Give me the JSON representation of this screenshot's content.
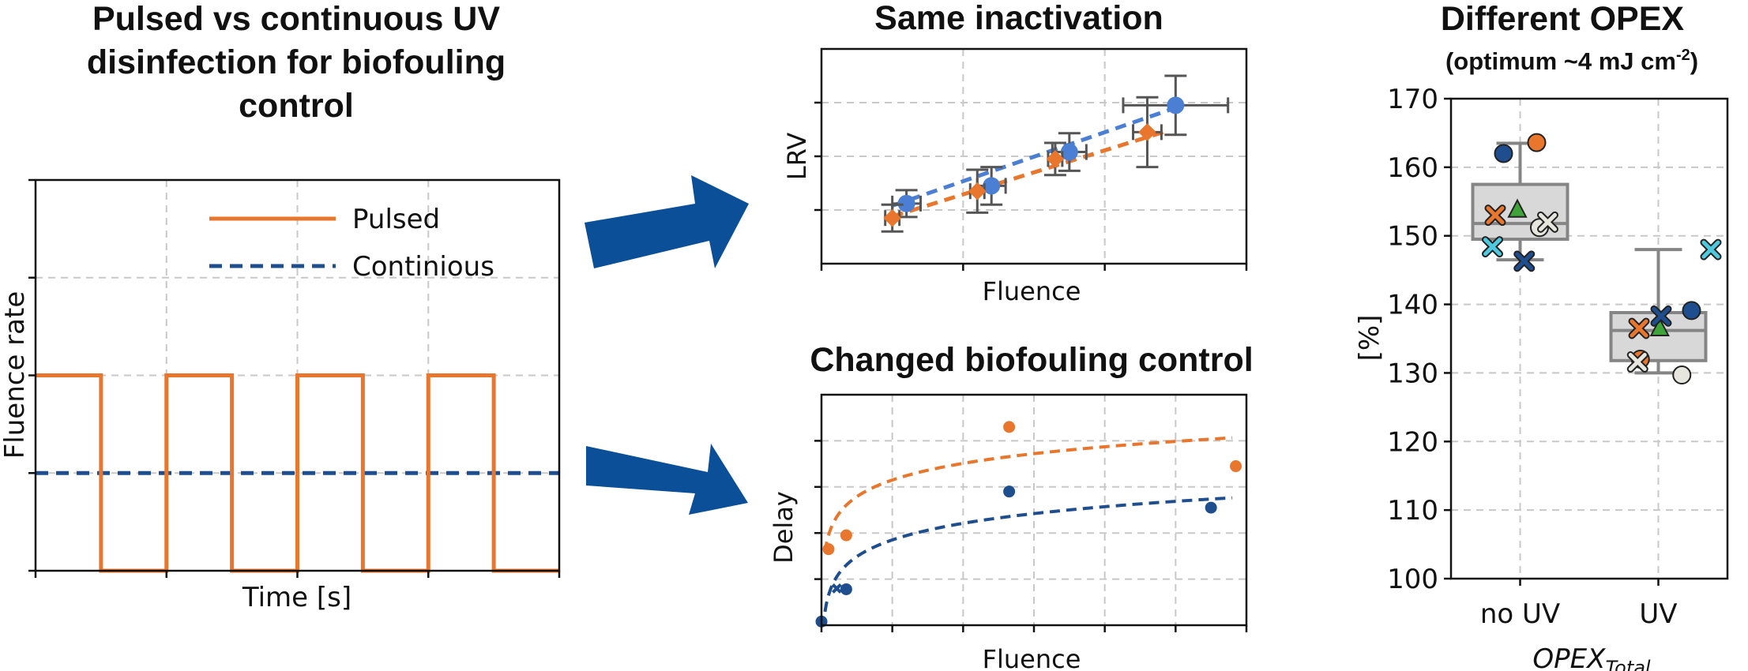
{
  "colors": {
    "orange": "#e8762c",
    "blue": "#4a7fd4",
    "dark_blue": "#1f4e8f",
    "arrow": "#0b4f99",
    "cyan": "#4fc9de",
    "green": "#3ea43a",
    "light": "#e6e6df",
    "box_fill": "#d8d8d8",
    "box_edge": "#858585"
  },
  "chart_data": [
    {
      "id": "fluence-schedule",
      "type": "line",
      "title": "Pulsed vs continuous UV disinfection for biofouling control",
      "title_lines": [
        "Pulsed vs continuous UV",
        "disinfection for biofouling",
        "control"
      ],
      "xlabel": "Time [s]",
      "ylabel": "Fluence rate",
      "xlim": [
        0,
        8
      ],
      "ylim": [
        0,
        4
      ],
      "grid": true,
      "legend_position": "upper-center",
      "series": [
        {
          "name": "Pulsed",
          "style": "solid",
          "x": [
            0,
            1,
            1,
            2,
            2,
            3,
            3,
            4,
            4,
            5,
            5,
            6,
            6,
            7,
            7,
            8
          ],
          "y": [
            2,
            2,
            0,
            0,
            2,
            2,
            0,
            0,
            2,
            2,
            0,
            0,
            2,
            2,
            0,
            0
          ]
        },
        {
          "name": "Continious",
          "style": "dashed",
          "x": [
            0,
            8
          ],
          "y": [
            1,
            1
          ]
        }
      ]
    },
    {
      "id": "inactivation",
      "type": "scatter",
      "title": "Same inactivation",
      "xlabel": "Fluence",
      "ylabel": "LRV",
      "xlim": [
        0,
        3
      ],
      "ylim": [
        0,
        4
      ],
      "grid": true,
      "series": [
        {
          "marker": "circle",
          "color_key": "blue",
          "x": [
            0.6,
            1.2,
            1.75,
            2.5
          ],
          "y": [
            1.12,
            1.45,
            2.08,
            2.95
          ],
          "xerr": [
            0.1,
            0.1,
            0.12,
            0.37
          ],
          "yerr": [
            0.25,
            0.35,
            0.35,
            0.55
          ],
          "fit": [
            [
              0.5,
              1.08
            ],
            [
              2.55,
              2.95
            ]
          ]
        },
        {
          "marker": "diamond",
          "color_key": "orange",
          "x": [
            0.5,
            1.1,
            1.65,
            2.3
          ],
          "y": [
            0.85,
            1.35,
            1.95,
            2.45
          ],
          "xerr": [
            0.05,
            0.05,
            0.05,
            0.1
          ],
          "yerr": [
            0.25,
            0.4,
            0.3,
            0.65
          ],
          "fit": [
            [
              0.5,
              0.88
            ],
            [
              2.45,
              2.48
            ]
          ]
        }
      ]
    },
    {
      "id": "biofouling",
      "type": "scatter",
      "title": "Changed biofouling control",
      "xlabel": "Fluence",
      "ylabel": "Delay",
      "xlim": [
        0,
        6
      ],
      "ylim": [
        0,
        5
      ],
      "grid": true,
      "series": [
        {
          "color_key": "orange",
          "x": [
            0.1,
            0.35,
            2.65,
            5.85
          ],
          "y": [
            1.65,
            1.95,
            4.3,
            3.45
          ],
          "fit": "logarithmic"
        },
        {
          "color_key": "dark_blue",
          "x": [
            0.0,
            0.35,
            2.65,
            5.5
          ],
          "y": [
            0.08,
            0.78,
            2.9,
            2.55
          ],
          "fit": "logarithmic"
        }
      ]
    },
    {
      "id": "opex",
      "type": "box",
      "title": "Different OPEX",
      "subtitle": "(optimum ~4 mJ cm",
      "subtitle_sup": "-2",
      "subtitle_end": ")",
      "ylabel": "[%]",
      "xlabel": "OPEX",
      "xlabel_sub": "Total",
      "categories": [
        "no UV",
        "UV"
      ],
      "yticks": [
        100,
        110,
        120,
        130,
        140,
        150,
        160,
        170
      ],
      "ylim": [
        100,
        170
      ],
      "grid": true,
      "boxes": [
        {
          "category": "no UV",
          "q1": 149.5,
          "median": 151.8,
          "q3": 157.5,
          "whisker_low": 146.5,
          "whisker_high": 163.5
        },
        {
          "category": "UV",
          "q1": 131.8,
          "median": 136.2,
          "q3": 138.8,
          "whisker_low": 130.0,
          "whisker_high": 148.0
        }
      ],
      "points": [
        {
          "category": "no UV",
          "offset": -0.12,
          "value": 162.0,
          "marker": "circle",
          "color_key": "dark_blue"
        },
        {
          "category": "no UV",
          "offset": 0.12,
          "value": 163.6,
          "marker": "circle",
          "color_key": "orange"
        },
        {
          "category": "no UV",
          "offset": -0.18,
          "value": 153.0,
          "marker": "x",
          "color_key": "orange"
        },
        {
          "category": "no UV",
          "offset": -0.02,
          "value": 153.8,
          "marker": "triangle",
          "color_key": "green"
        },
        {
          "category": "no UV",
          "offset": 0.14,
          "value": 151.2,
          "marker": "circle",
          "color_key": "light"
        },
        {
          "category": "no UV",
          "offset": 0.2,
          "value": 152.0,
          "marker": "x",
          "color_key": "light"
        },
        {
          "category": "no UV",
          "offset": -0.2,
          "value": 148.4,
          "marker": "x",
          "color_key": "cyan"
        },
        {
          "category": "no UV",
          "offset": 0.03,
          "value": 146.3,
          "marker": "x",
          "color_key": "dark_blue"
        },
        {
          "category": "UV",
          "offset": -0.14,
          "value": 136.5,
          "marker": "x",
          "color_key": "orange"
        },
        {
          "category": "UV",
          "offset": 0.01,
          "value": 136.5,
          "marker": "triangle",
          "color_key": "green"
        },
        {
          "category": "UV",
          "offset": 0.02,
          "value": 138.3,
          "marker": "x",
          "color_key": "dark_blue"
        },
        {
          "category": "UV",
          "offset": 0.24,
          "value": 139.1,
          "marker": "circle",
          "color_key": "dark_blue"
        },
        {
          "category": "UV",
          "offset": 0.38,
          "value": 148.0,
          "marker": "x",
          "color_key": "cyan"
        },
        {
          "category": "UV",
          "offset": -0.13,
          "value": 132.0,
          "marker": "circle",
          "color_key": "orange"
        },
        {
          "category": "UV",
          "offset": -0.15,
          "value": 131.6,
          "marker": "x",
          "color_key": "light"
        },
        {
          "category": "UV",
          "offset": 0.17,
          "value": 129.7,
          "marker": "circle",
          "color_key": "light"
        }
      ]
    }
  ]
}
